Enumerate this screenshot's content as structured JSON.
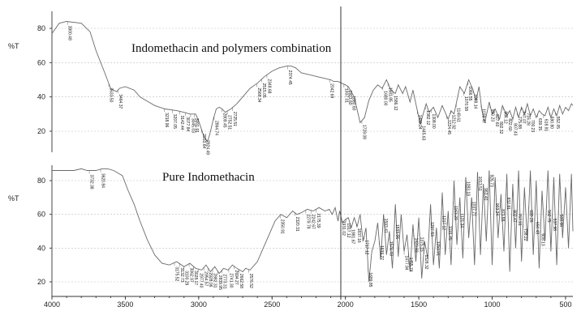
{
  "chart_data": [
    {
      "type": "line",
      "title": "Indomethacin and polymers combination",
      "ylabel": "%T",
      "xlim": [
        4000,
        450
      ],
      "ylim": [
        10,
        90
      ],
      "yticks": [
        20,
        40,
        60,
        80
      ],
      "grid": true,
      "series": [
        {
          "x": [
            4000,
            3950,
            3900,
            3800,
            3740,
            3700,
            3640,
            3600,
            3560,
            3540,
            3500,
            3440,
            3400,
            3300,
            3230,
            3150,
            3100,
            3060,
            3020,
            3000,
            2965,
            2940,
            2925,
            2900,
            2880,
            2860,
            2840,
            2820,
            2780,
            2740,
            2700,
            2650,
            2600,
            2550,
            2500,
            2450,
            2400,
            2370,
            2340,
            2300,
            2250,
            2200,
            2150,
            2100,
            2080,
            2050,
            2000,
            1980,
            1940,
            1900,
            1870,
            1840,
            1810,
            1780,
            1750,
            1720,
            1690,
            1660,
            1640,
            1610,
            1590,
            1560,
            1540,
            1510,
            1490,
            1470,
            1450,
            1430,
            1400,
            1370,
            1340,
            1300,
            1280,
            1260,
            1240,
            1220,
            1190,
            1160,
            1130,
            1110,
            1090,
            1070,
            1050,
            1020,
            1000,
            980,
            950,
            930,
            900,
            880,
            860,
            840,
            820,
            800,
            780,
            760,
            740,
            720,
            700,
            680,
            660,
            640,
            620,
            600,
            580,
            560,
            540,
            520,
            500,
            480,
            460,
            450
          ],
          "y": [
            77,
            83,
            84,
            83,
            78,
            67,
            54,
            45,
            43,
            45,
            46,
            44,
            40,
            35,
            33,
            32,
            31,
            30,
            30,
            26,
            17,
            14,
            18,
            27,
            33,
            34,
            33,
            31,
            33,
            36,
            40,
            45,
            48,
            52,
            55,
            57,
            58,
            58,
            57,
            54,
            53,
            52,
            51,
            50,
            49,
            49,
            47,
            46,
            40,
            25,
            28,
            38,
            44,
            47,
            45,
            50,
            44,
            42,
            47,
            42,
            46,
            37,
            44,
            32,
            24,
            30,
            36,
            31,
            34,
            28,
            35,
            27,
            32,
            30,
            38,
            46,
            42,
            50,
            44,
            38,
            46,
            32,
            25,
            37,
            30,
            33,
            27,
            35,
            29,
            32,
            27,
            34,
            28,
            34,
            30,
            36,
            29,
            33,
            28,
            32,
            30,
            29,
            34,
            28,
            33,
            29,
            35,
            30,
            34,
            32,
            36,
            35
          ]
        }
      ],
      "peak_labels": [
        {
          "x": 3894,
          "text": "3900.48"
        },
        {
          "x": 3612,
          "text": "3633.50"
        },
        {
          "x": 3550,
          "text": "3464.37"
        },
        {
          "x": 3235,
          "text": "3218.96"
        },
        {
          "x": 3180,
          "text": "3207.05"
        },
        {
          "x": 3130,
          "text": "3142.44"
        },
        {
          "x": 3090,
          "text": "3077.84"
        },
        {
          "x": 3055,
          "text": "3045.03"
        },
        {
          "x": 3030,
          "text": "3001.91"
        },
        {
          "x": 2980,
          "text": "2933.64"
        },
        {
          "x": 2955,
          "text": "2924.49"
        },
        {
          "x": 2895,
          "text": "2864.74"
        },
        {
          "x": 2840,
          "text": "2809.45"
        },
        {
          "x": 2805,
          "text": "2752.51"
        },
        {
          "x": 2770,
          "text": "2725.51"
        },
        {
          "x": 2605,
          "text": "2568.34"
        },
        {
          "x": 2570,
          "text": "2515.05"
        },
        {
          "x": 2535,
          "text": "2348.68"
        },
        {
          "x": 2395,
          "text": "2374.45"
        },
        {
          "x": 2108,
          "text": "2042.69"
        },
        {
          "x": 2010,
          "text": "1937.01"
        },
        {
          "x": 1985,
          "text": "1913.60"
        },
        {
          "x": 1960,
          "text": "1880.60"
        },
        {
          "x": 1888,
          "text": "1729.08"
        },
        {
          "x": 1745,
          "text": "1680.00"
        },
        {
          "x": 1710,
          "text": "1581.85"
        },
        {
          "x": 1675,
          "text": "1586.12"
        },
        {
          "x": 1510,
          "text": "1480.24"
        },
        {
          "x": 1485,
          "text": "1445.63"
        },
        {
          "x": 1455,
          "text": "1382.12"
        },
        {
          "x": 1415,
          "text": "1308.00"
        },
        {
          "x": 1310,
          "text": "1224.45"
        },
        {
          "x": 1280,
          "text": "1212.92"
        },
        {
          "x": 1245,
          "text": "1149.61"
        },
        {
          "x": 1195,
          "text": "1070.58"
        },
        {
          "x": 1165,
          "text": "1066.55"
        },
        {
          "x": 1130,
          "text": "1088.14"
        },
        {
          "x": 1075,
          "text": "1039.47"
        },
        {
          "x": 1015,
          "text": "990.23"
        },
        {
          "x": 985,
          "text": "927.60"
        },
        {
          "x": 955,
          "text": "892.32"
        },
        {
          "x": 925,
          "text": "864.12"
        },
        {
          "x": 895,
          "text": "822.60"
        },
        {
          "x": 860,
          "text": "807.43"
        },
        {
          "x": 830,
          "text": "775.88"
        },
        {
          "x": 800,
          "text": "747.07"
        },
        {
          "x": 770,
          "text": "716.28"
        },
        {
          "x": 740,
          "text": "700.23"
        },
        {
          "x": 690,
          "text": "639.35"
        },
        {
          "x": 650,
          "text": "618.91"
        },
        {
          "x": 610,
          "text": "590.80"
        },
        {
          "x": 570,
          "text": "552.05"
        }
      ]
    },
    {
      "type": "line",
      "title": "Pure Indomethacin",
      "ylabel": "%T",
      "xlabel": "",
      "xlim": [
        4000,
        450
      ],
      "ylim": [
        10,
        90
      ],
      "yticks": [
        20,
        40,
        60,
        80
      ],
      "xticks": [
        4000,
        3500,
        3000,
        2500,
        2000,
        1500,
        1000,
        500
      ],
      "grid": true,
      "series": [
        {
          "x": [
            4000,
            3950,
            3900,
            3850,
            3800,
            3760,
            3720,
            3700,
            3660,
            3620,
            3580,
            3520,
            3480,
            3440,
            3400,
            3350,
            3300,
            3250,
            3200,
            3150,
            3100,
            3060,
            3020,
            2980,
            2950,
            2920,
            2890,
            2860,
            2830,
            2800,
            2770,
            2740,
            2720,
            2700,
            2680,
            2650,
            2620,
            2600,
            2560,
            2520,
            2480,
            2440,
            2400,
            2360,
            2330,
            2300,
            2260,
            2220,
            2180,
            2140,
            2110,
            2090,
            2070,
            2050,
            2040,
            2020,
            2000,
            1980,
            1960,
            1940,
            1920,
            1900,
            1880,
            1860,
            1840,
            1820,
            1800,
            1780,
            1760,
            1740,
            1720,
            1700,
            1680,
            1660,
            1640,
            1620,
            1600,
            1580,
            1560,
            1540,
            1520,
            1500,
            1480,
            1460,
            1440,
            1420,
            1400,
            1380,
            1360,
            1340,
            1320,
            1300,
            1280,
            1260,
            1240,
            1220,
            1200,
            1180,
            1160,
            1140,
            1120,
            1100,
            1080,
            1060,
            1040,
            1020,
            1000,
            980,
            960,
            940,
            920,
            900,
            880,
            860,
            840,
            820,
            800,
            780,
            760,
            740,
            720,
            700,
            680,
            660,
            640,
            620,
            600,
            580,
            560,
            540,
            520,
            500,
            480,
            460,
            450
          ],
          "y": [
            86,
            86,
            86,
            86,
            87,
            86,
            86,
            86,
            87,
            87,
            86,
            83,
            74,
            66,
            56,
            45,
            36,
            31,
            30,
            32,
            29,
            31,
            28,
            27,
            30,
            26,
            29,
            25,
            28,
            27,
            30,
            28,
            27,
            26,
            28,
            27,
            30,
            32,
            40,
            48,
            56,
            60,
            58,
            62,
            60,
            61,
            63,
            62,
            64,
            62,
            63,
            60,
            64,
            56,
            62,
            55,
            57,
            58,
            52,
            58,
            53,
            60,
            44,
            52,
            20,
            38,
            44,
            55,
            33,
            60,
            36,
            50,
            28,
            66,
            35,
            60,
            38,
            48,
            26,
            54,
            32,
            58,
            22,
            44,
            34,
            66,
            30,
            52,
            28,
            73,
            36,
            62,
            30,
            80,
            42,
            70,
            34,
            82,
            46,
            70,
            30,
            85,
            36,
            78,
            44,
            86,
            30,
            82,
            46,
            72,
            38,
            84,
            26,
            78,
            40,
            86,
            32,
            76,
            44,
            86,
            36,
            80,
            28,
            74,
            44,
            86,
            38,
            82,
            30,
            84,
            46,
            76,
            40,
            84,
            50
          ]
        }
      ],
      "peak_labels": [
        {
          "x": 3745,
          "text": "3732.38"
        },
        {
          "x": 3668,
          "text": "3620.84"
        },
        {
          "x": 3165,
          "text": "3175.52"
        },
        {
          "x": 3130,
          "text": "3132.73"
        },
        {
          "x": 3100,
          "text": "3100.29"
        },
        {
          "x": 3065,
          "text": "3062.97"
        },
        {
          "x": 3035,
          "text": "3028.17"
        },
        {
          "x": 3000,
          "text": "2977.40"
        },
        {
          "x": 2965,
          "text": "2954.57"
        },
        {
          "x": 2935,
          "text": "2928.06"
        },
        {
          "x": 2905,
          "text": "2882.31"
        },
        {
          "x": 2870,
          "text": "2839.95"
        },
        {
          "x": 2840,
          "text": "2773.31"
        },
        {
          "x": 2795,
          "text": "2741.30"
        },
        {
          "x": 2760,
          "text": "2694.27"
        },
        {
          "x": 2725,
          "text": "2662.58"
        },
        {
          "x": 2660,
          "text": "2576.52"
        },
        {
          "x": 2445,
          "text": "2350.91"
        },
        {
          "x": 2345,
          "text": "2320.31"
        },
        {
          "x": 2270,
          "text": "2279.78"
        },
        {
          "x": 2235,
          "text": "2242.67"
        },
        {
          "x": 2200,
          "text": "2175.39"
        },
        {
          "x": 2030,
          "text": "1931.02"
        },
        {
          "x": 1995,
          "text": "1917.12"
        },
        {
          "x": 1965,
          "text": "1881.67"
        },
        {
          "x": 1925,
          "text": "1837.16"
        },
        {
          "x": 1872,
          "text": "1717.12"
        },
        {
          "x": 1845,
          "text": "1689.85"
        },
        {
          "x": 1770,
          "text": "1639.27"
        },
        {
          "x": 1740,
          "text": "1593.41"
        },
        {
          "x": 1705,
          "text": "1576.43"
        },
        {
          "x": 1665,
          "text": "1533.06"
        },
        {
          "x": 1600,
          "text": "1477.94"
        },
        {
          "x": 1570,
          "text": "1455.74"
        },
        {
          "x": 1535,
          "text": "1420.83"
        },
        {
          "x": 1495,
          "text": "1375.15"
        },
        {
          "x": 1465,
          "text": "1328.32"
        },
        {
          "x": 1425,
          "text": "1297.53"
        },
        {
          "x": 1385,
          "text": "1253.91"
        },
        {
          "x": 1345,
          "text": "1217.12"
        },
        {
          "x": 1305,
          "text": "1191.45"
        },
        {
          "x": 1265,
          "text": "1163.29"
        },
        {
          "x": 1225,
          "text": "1121.34"
        },
        {
          "x": 1180,
          "text": "1083.19"
        },
        {
          "x": 1140,
          "text": "1037.77"
        },
        {
          "x": 1100,
          "text": "1013.51"
        },
        {
          "x": 1060,
          "text": "963.40"
        },
        {
          "x": 1020,
          "text": "926.73"
        },
        {
          "x": 985,
          "text": "903.24"
        },
        {
          "x": 945,
          "text": "871.55"
        },
        {
          "x": 905,
          "text": "832.81"
        },
        {
          "x": 865,
          "text": "802.47"
        },
        {
          "x": 830,
          "text": "767.91"
        },
        {
          "x": 790,
          "text": "738.22"
        },
        {
          "x": 750,
          "text": "690.26"
        },
        {
          "x": 710,
          "text": "650.48"
        },
        {
          "x": 670,
          "text": "608.13"
        },
        {
          "x": 630,
          "text": "562.75"
        },
        {
          "x": 590,
          "text": "537.98"
        },
        {
          "x": 548,
          "text": "508.66"
        }
      ]
    }
  ]
}
